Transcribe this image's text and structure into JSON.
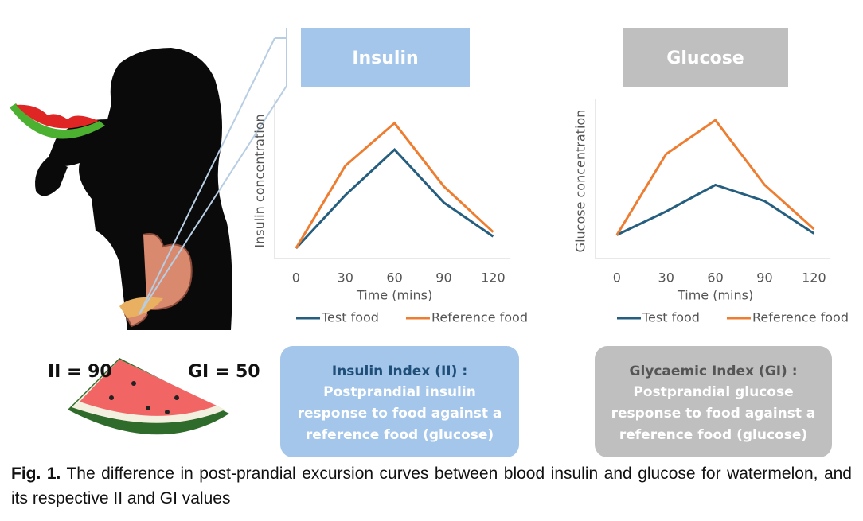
{
  "chart_data": [
    {
      "type": "line",
      "title": "Insulin",
      "xlabel": "Time (mins)",
      "ylabel": "Insulin  concentration",
      "x": [
        0,
        30,
        60,
        90,
        120
      ],
      "xticks": [
        0,
        30,
        60,
        90,
        120
      ],
      "xlim": [
        -13,
        130
      ],
      "ylim": [
        0,
        100
      ],
      "series": [
        {
          "name": "Test food",
          "color": "#255e7e",
          "values": [
            7,
            43,
            74,
            38,
            15
          ]
        },
        {
          "name": "Reference food",
          "color": "#ed7d31",
          "values": [
            7,
            63,
            92,
            49,
            18
          ]
        }
      ]
    },
    {
      "type": "line",
      "title": "Glucose",
      "xlabel": "Time (mins)",
      "ylabel": "Glucose  concentration",
      "x": [
        0,
        30,
        60,
        90,
        120
      ],
      "xticks": [
        0,
        30,
        60,
        90,
        120
      ],
      "xlim": [
        -13,
        130
      ],
      "ylim": [
        0,
        100
      ],
      "series": [
        {
          "name": "Test food",
          "color": "#255e7e",
          "values": [
            16,
            32,
            50,
            39,
            17
          ]
        },
        {
          "name": "Reference food",
          "color": "#ed7d31",
          "values": [
            16,
            71,
            94,
            50,
            20
          ]
        }
      ]
    }
  ],
  "labels": {
    "ii": "II = 90",
    "gi": "GI = 50"
  },
  "boxes": [
    {
      "heading": "Insulin Index (II) :",
      "lines": [
        "Postprandial insulin",
        "response to food against a",
        "reference food (glucose)"
      ]
    },
    {
      "heading": "Glycaemic Index (GI) :",
      "lines": [
        "Postprandial glucose",
        "response to food against a",
        "reference food (glucose)"
      ]
    }
  ],
  "caption": {
    "label": "Fig. 1.",
    "text": "The difference in post-prandial excursion curves between blood insulin and glucose for watermelon, and its respective II and GI values"
  }
}
